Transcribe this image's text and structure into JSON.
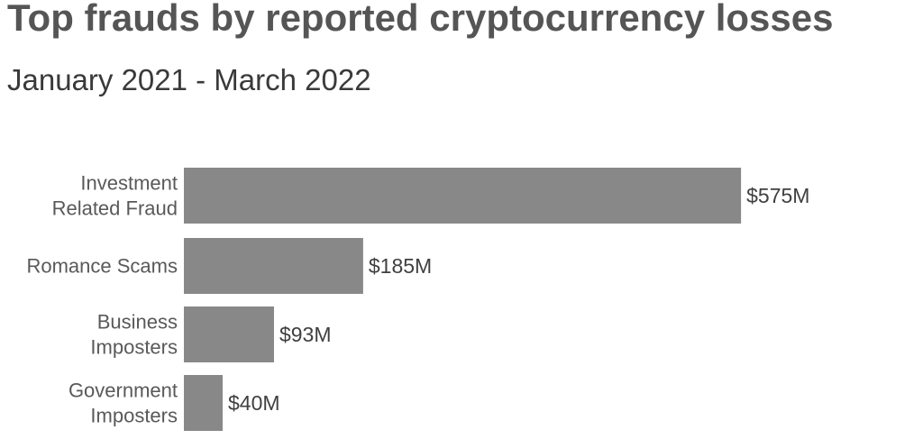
{
  "title": "Top frauds by reported cryptocurrency losses",
  "subtitle": "January 2021 - March 2022",
  "colors": {
    "bar": "#888888",
    "category_text": "#595959",
    "value_text": "#404040",
    "title_text": "#555555",
    "subtitle_text": "#3a3a3a"
  },
  "chart_data": {
    "type": "bar",
    "orientation": "horizontal",
    "title": "Top frauds by reported cryptocurrency losses",
    "subtitle": "January 2021 - March 2022",
    "categories": [
      [
        "Investment",
        "Related Fraud"
      ],
      [
        "Romance Scams"
      ],
      [
        "Business",
        "Imposters"
      ],
      [
        "Government",
        "Imposters"
      ]
    ],
    "values": [
      575,
      185,
      93,
      40
    ],
    "value_labels": [
      "$575M",
      "$185M",
      "$93M",
      "$40M"
    ],
    "unit": "$M",
    "xlabel": "",
    "ylabel": "",
    "grid": false,
    "legend": "none"
  }
}
